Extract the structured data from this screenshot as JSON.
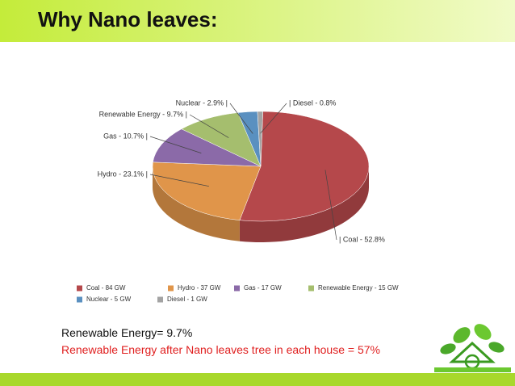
{
  "header": {
    "title": "Why Nano leaves:"
  },
  "chart_data": {
    "type": "pie",
    "values": [
      52.8,
      23.1,
      10.7,
      9.7,
      2.9,
      0.8
    ],
    "value_labels": [
      "| Coal - 52.8%",
      "Hydro - 23.1% |",
      "Gas - 10.7% |",
      "Renewable Energy - 9.7% |",
      "Nuclear - 2.9% |",
      "| Diesel - 0.8%"
    ],
    "legend_labels": [
      "Coal - 84 GW",
      "Hydro - 37 GW",
      "Gas - 17 GW",
      "Renewable Energy - 15 GW",
      "Nuclear - 5 GW",
      "Diesel - 1 GW"
    ],
    "colors": [
      "#b5484b",
      "#e0954a",
      "#8b6aa8",
      "#a5be6e",
      "#5a90c0",
      "#a3a3a3"
    ]
  },
  "notes": [
    "Renewable Energy= 9.7%",
    "Renewable Energy after Nano leaves tree in each house = 57%"
  ]
}
